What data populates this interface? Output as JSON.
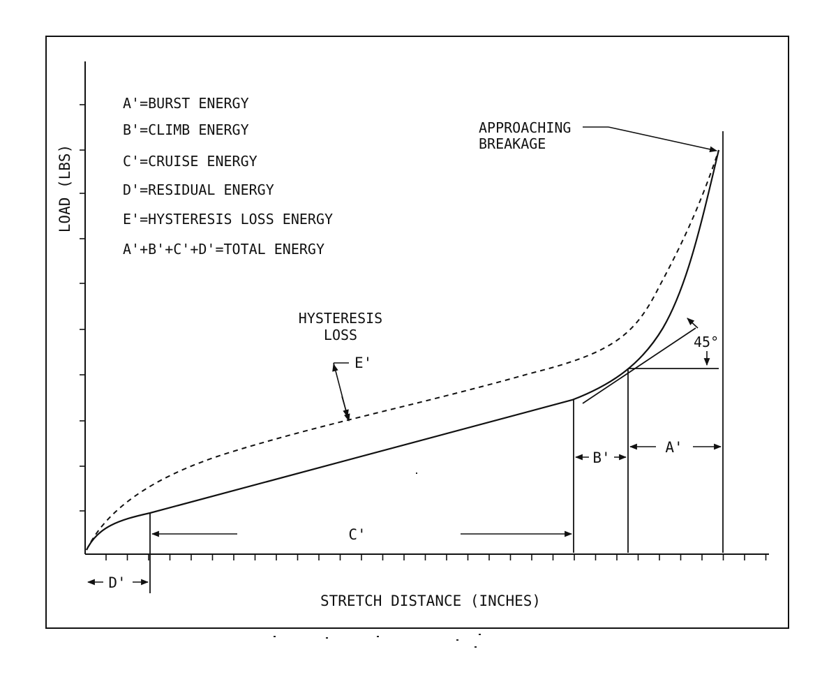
{
  "legend": [
    "A'=BURST ENERGY",
    "B'=CLIMB ENERGY",
    "C'=CRUISE ENERGY",
    "D'=RESIDUAL ENERGY",
    "E'=HYSTERESIS LOSS ENERGY",
    "A'+B'+C'+D'=TOTAL ENERGY"
  ],
  "axes": {
    "y_label": "LOAD (LBS)",
    "x_label": "STRETCH DISTANCE (INCHES)"
  },
  "annotations": {
    "breakage_line1": "APPROACHING",
    "breakage_line2": "BREAKAGE",
    "hysteresis_line1": "HYSTERESIS",
    "hysteresis_line2": "LOSS",
    "e_label": "E'",
    "angle": "45°"
  },
  "dimensions": {
    "a": "A'",
    "b": "B'",
    "c": "C'",
    "d": "D'"
  }
}
